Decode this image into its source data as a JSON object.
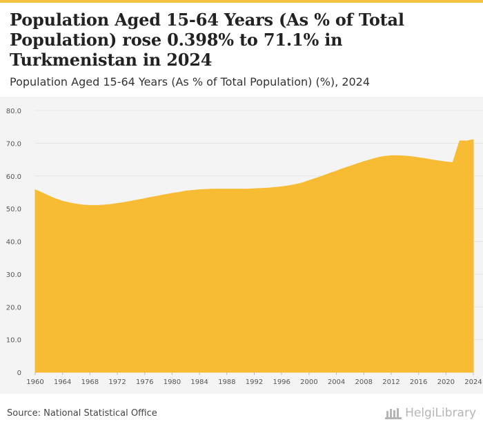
{
  "header": {
    "title": "Population Aged 15-64 Years (As % of Total Population) rose 0.398% to 71.1% in Turkmenistan in 2024",
    "subtitle": "Population Aged 15-64 Years (As % of Total Population) (%), 2024"
  },
  "footer": {
    "source": "Source: National Statistical Office",
    "logo_text": "HelgiLibrary"
  },
  "colors": {
    "accent": "#f5c242",
    "area_fill": "#f8bc34",
    "grid": "#e3e3e3",
    "plot_bg": "#f4f4f4"
  },
  "chart_data": {
    "type": "area",
    "title": "",
    "xlabel": "",
    "ylabel": "",
    "x": [
      1960,
      1961,
      1962,
      1963,
      1964,
      1965,
      1966,
      1967,
      1968,
      1969,
      1970,
      1971,
      1972,
      1973,
      1974,
      1975,
      1976,
      1977,
      1978,
      1979,
      1980,
      1981,
      1982,
      1983,
      1984,
      1985,
      1986,
      1987,
      1988,
      1989,
      1990,
      1991,
      1992,
      1993,
      1994,
      1995,
      1996,
      1997,
      1998,
      1999,
      2000,
      2001,
      2002,
      2003,
      2004,
      2005,
      2006,
      2007,
      2008,
      2009,
      2010,
      2011,
      2012,
      2013,
      2014,
      2015,
      2016,
      2017,
      2018,
      2019,
      2020,
      2021,
      2022,
      2023,
      2024
    ],
    "series": [
      {
        "values": [
          55.8,
          54.9,
          53.9,
          53.0,
          52.3,
          51.8,
          51.4,
          51.1,
          51.0,
          51.0,
          51.1,
          51.3,
          51.6,
          51.9,
          52.3,
          52.7,
          53.1,
          53.5,
          53.9,
          54.3,
          54.7,
          55.0,
          55.4,
          55.6,
          55.8,
          55.9,
          56.0,
          56.0,
          56.0,
          56.0,
          56.0,
          56.0,
          56.1,
          56.2,
          56.3,
          56.5,
          56.7,
          57.0,
          57.4,
          57.9,
          58.6,
          59.3,
          60.0,
          60.8,
          61.5,
          62.3,
          63.0,
          63.7,
          64.4,
          65.0,
          65.6,
          66.0,
          66.2,
          66.2,
          66.1,
          65.9,
          65.6,
          65.3,
          64.9,
          64.6,
          64.3,
          64.1,
          70.7,
          70.7,
          71.1
        ]
      }
    ],
    "x_ticks": [
      "1960",
      "1964",
      "1968",
      "1972",
      "1976",
      "1980",
      "1984",
      "1988",
      "1992",
      "1996",
      "2000",
      "2004",
      "2008",
      "2012",
      "2016",
      "2020",
      "2024"
    ],
    "y_ticks": [
      "0",
      "10.0",
      "20.0",
      "30.0",
      "40.0",
      "50.0",
      "60.0",
      "70.0",
      "80.0"
    ],
    "ylim": [
      0,
      80
    ],
    "xlim": [
      1960,
      2024
    ],
    "grid": true,
    "legend": "none"
  }
}
